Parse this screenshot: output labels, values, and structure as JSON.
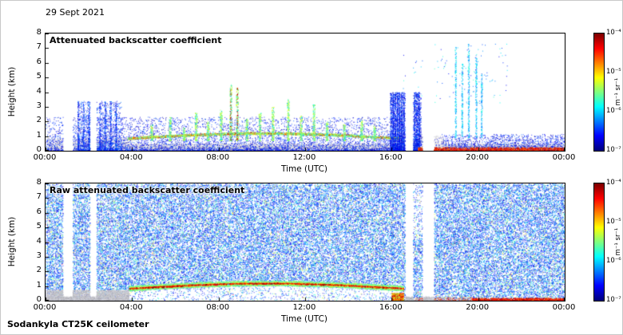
{
  "page": {
    "date_label": "29 Sept 2021",
    "footer_label": "Sodankyla CT25K ceilometer",
    "background_color": "#ffffff",
    "axis_color": "#000000"
  },
  "chart_data": [
    {
      "type": "heatmap",
      "title": "Attenuated backscatter coefficient",
      "xlabel": "Time (UTC)",
      "ylabel": "Height (km)",
      "x_ticks": [
        "00:00",
        "04:00",
        "08:00",
        "12:00",
        "16:00",
        "20:00",
        "00:00"
      ],
      "x_range_hours": [
        0,
        24
      ],
      "y_ticks": [
        "0",
        "1",
        "2",
        "3",
        "4",
        "5",
        "6",
        "7",
        "8"
      ],
      "ylim_km": [
        0,
        8
      ],
      "colorbar": {
        "ticks": [
          "10⁻⁴",
          "10⁻⁵",
          "10⁻⁶",
          "10⁻⁷"
        ],
        "unit": "m⁻¹ sr⁻¹",
        "colormap": "jet",
        "range_log10": [
          -7,
          -4
        ]
      },
      "render": {
        "style": "processed",
        "seed": 42,
        "gaps": [
          [
            0.8,
            1.25
          ],
          [
            2.05,
            2.35
          ],
          [
            16.62,
            16.98
          ],
          [
            17.42,
            17.95
          ]
        ],
        "aerosol_layer": {
          "t_start": 3.8,
          "t_end": 16.4,
          "base_km": 0.85,
          "amp_km": 0.35
        },
        "noise_top_km": 2.3,
        "morning_cluster": {
          "t_start": 1.5,
          "t_end": 3.5,
          "top_km": 3.4
        },
        "plume_events": [
          {
            "t": 4.9,
            "top": 1.8
          },
          {
            "t": 5.75,
            "top": 2.3
          },
          {
            "t": 6.4,
            "top": 1.6
          },
          {
            "t": 6.95,
            "top": 2.6
          },
          {
            "t": 7.5,
            "top": 2.0
          },
          {
            "t": 8.1,
            "top": 2.8
          },
          {
            "t": 8.55,
            "top": 4.6
          },
          {
            "t": 8.85,
            "top": 4.3
          },
          {
            "t": 9.3,
            "top": 2.2
          },
          {
            "t": 9.9,
            "top": 2.6
          },
          {
            "t": 10.5,
            "top": 3.0
          },
          {
            "t": 11.2,
            "top": 3.6
          },
          {
            "t": 11.8,
            "top": 2.4
          },
          {
            "t": 12.4,
            "top": 3.2
          },
          {
            "t": 13.0,
            "top": 2.0
          },
          {
            "t": 13.8,
            "top": 1.8
          },
          {
            "t": 14.6,
            "top": 2.1
          },
          {
            "t": 15.2,
            "top": 1.7
          }
        ],
        "blue_burst": {
          "t_start": 15.95,
          "t_end": 17.35,
          "top_km": 4.0
        },
        "tall_columns": [
          {
            "t": 18.95,
            "top": 7.1
          },
          {
            "t": 19.25,
            "top": 6.0
          },
          {
            "t": 19.55,
            "top": 7.3
          },
          {
            "t": 19.9,
            "top": 6.6
          },
          {
            "t": 20.15,
            "top": 5.2
          }
        ],
        "evening_surface_red": {
          "t_start": 17.2,
          "t_end": 24,
          "top_km": 0.25
        }
      }
    },
    {
      "type": "heatmap",
      "title": "Raw attenuated backscatter coefficient",
      "xlabel": "Time (UTC)",
      "ylabel": "Height (km)",
      "x_ticks": [
        "00:00",
        "04:00",
        "08:00",
        "12:00",
        "16:00",
        "20:00",
        "00:00"
      ],
      "x_range_hours": [
        0,
        24
      ],
      "y_ticks": [
        "0",
        "1",
        "2",
        "3",
        "4",
        "5",
        "6",
        "7",
        "8"
      ],
      "ylim_km": [
        0,
        8
      ],
      "colorbar": {
        "ticks": [
          "10⁻⁴",
          "10⁻⁵",
          "10⁻⁶",
          "10⁻⁷"
        ],
        "unit": "m⁻¹ sr⁻¹",
        "colormap": "jet",
        "range_log10": [
          -7,
          -4
        ]
      },
      "render": {
        "style": "raw",
        "seed": 7,
        "gaps": [
          [
            0.8,
            1.25
          ],
          [
            2.05,
            2.35
          ],
          [
            16.62,
            16.98
          ],
          [
            17.42,
            17.95
          ]
        ],
        "aerosol_layer": {
          "t_start": 3.85,
          "t_end": 16.55,
          "base_km": 0.85,
          "amp_km": 0.35
        },
        "gray_band": {
          "t_start": 0,
          "t_end": 3.85,
          "top_km": 0.75
        },
        "evening_surface_red": {
          "t_start": 19.7,
          "t_end": 24,
          "top_km": 0.2
        }
      }
    }
  ]
}
